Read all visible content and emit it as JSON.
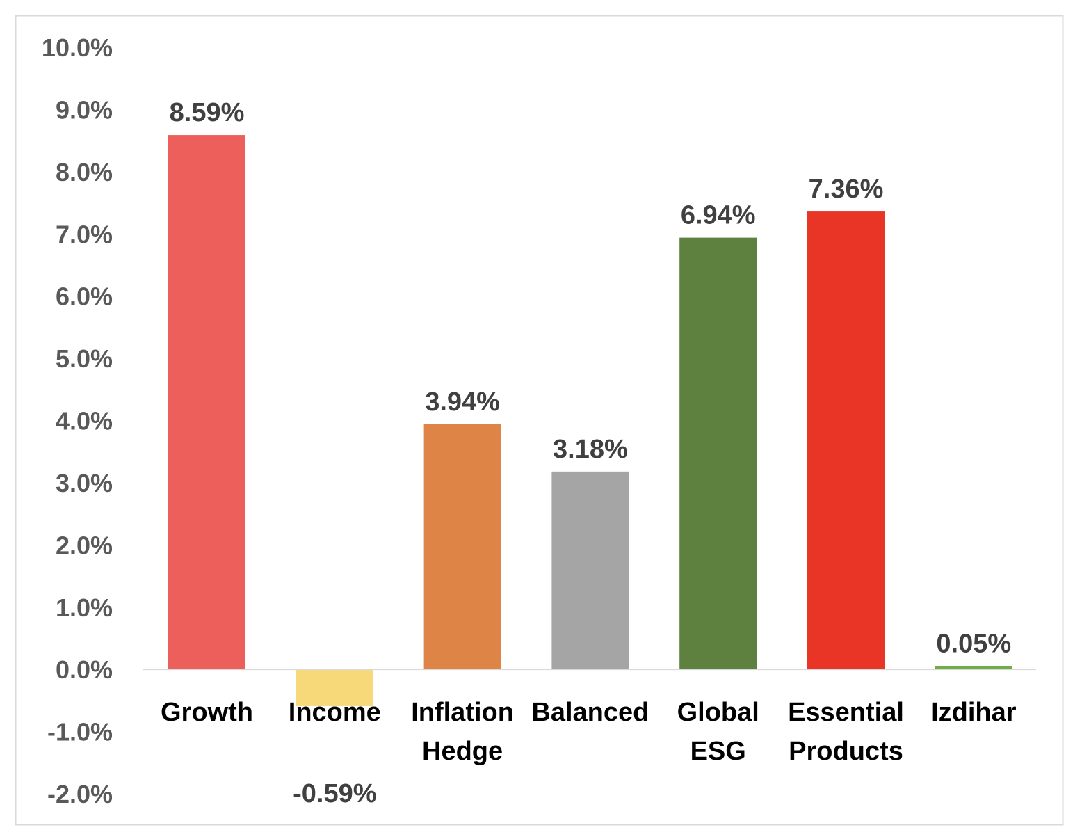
{
  "chart_data": {
    "type": "bar",
    "title": "",
    "xlabel": "",
    "ylabel": "",
    "categories": [
      [
        "Growth"
      ],
      [
        "Income"
      ],
      [
        "Inflation",
        "Hedge"
      ],
      [
        "Balanced"
      ],
      [
        "Global",
        "ESG"
      ],
      [
        "Essential",
        "Products"
      ],
      [
        "Izdihar"
      ]
    ],
    "values": [
      8.59,
      -0.59,
      3.94,
      3.18,
      6.94,
      7.36,
      0.05
    ],
    "data_labels": [
      "8.59%",
      "-0.59%",
      "3.94%",
      "3.18%",
      "6.94%",
      "7.36%",
      "0.05%"
    ],
    "colors": [
      "#EC5F5A",
      "#F7D97A",
      "#DE8446",
      "#A5A5A5",
      "#5E813F",
      "#E83525",
      "#70AD47"
    ],
    "ylim": [
      -2,
      10
    ],
    "yticks": [
      10,
      9,
      8,
      7,
      6,
      5,
      4,
      3,
      2,
      1,
      0,
      -1,
      -2
    ],
    "ytick_labels": [
      "10.0%",
      "9.0%",
      "8.0%",
      "7.0%",
      "6.0%",
      "5.0%",
      "4.0%",
      "3.0%",
      "2.0%",
      "1.0%",
      "0.0%",
      "-1.0%",
      "-2.0%"
    ],
    "grid": false,
    "legend": "none"
  }
}
